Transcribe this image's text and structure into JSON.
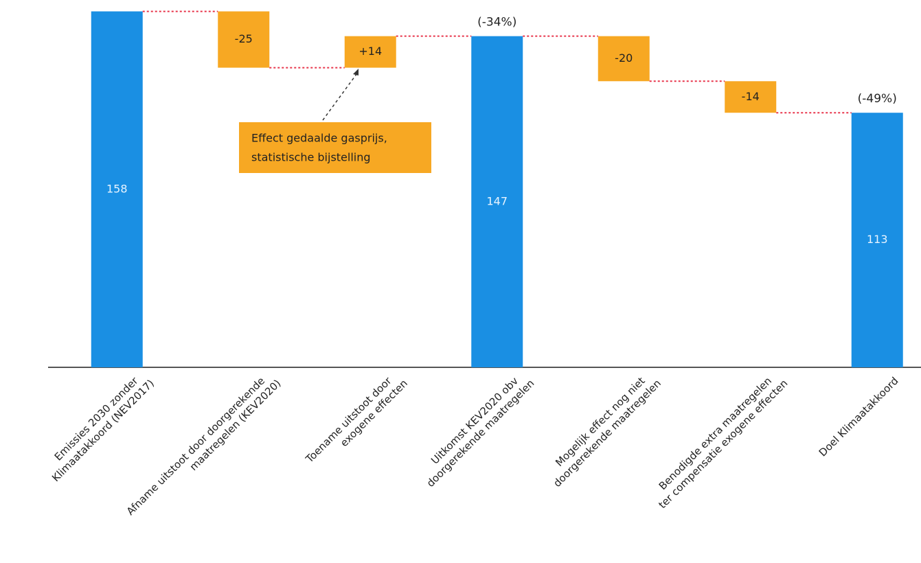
{
  "chart_data": {
    "type": "waterfall",
    "categories": [
      [
        "Emissies 2030 zonder",
        "Klimaatakkoord (NEV2017)"
      ],
      [
        "Afname uitstoot door doorgerekende",
        "maatregelen (KEV2020)"
      ],
      [
        "Toename uitstoot door",
        "exogene effecten"
      ],
      [
        "Uitkomst KEV2020 obv",
        "doorgerekende maatregelen"
      ],
      [
        "Mogelijk effect nog niet",
        "doorgerekende maatregelen"
      ],
      [
        "Benodigde extra maatregelen",
        "ter compensatie exogene effecten"
      ],
      [
        "Doel Klimaatakkoord"
      ]
    ],
    "values": [
      158,
      -25,
      14,
      147,
      -20,
      -14,
      113
    ],
    "value_labels": [
      "158",
      "-25",
      "+14",
      "147",
      "-20",
      "-14",
      "113"
    ],
    "percent_labels": [
      null,
      null,
      null,
      "(-34%)",
      null,
      null,
      "(-49%)"
    ],
    "callout": [
      "Effect gedaalde gasprijs,",
      "statistische bijstelling"
    ],
    "total_color": "#1a8fe3",
    "delta_color": "#f7a823",
    "connector_color": "#e8344a",
    "ylim": [
      0,
      160
    ]
  }
}
